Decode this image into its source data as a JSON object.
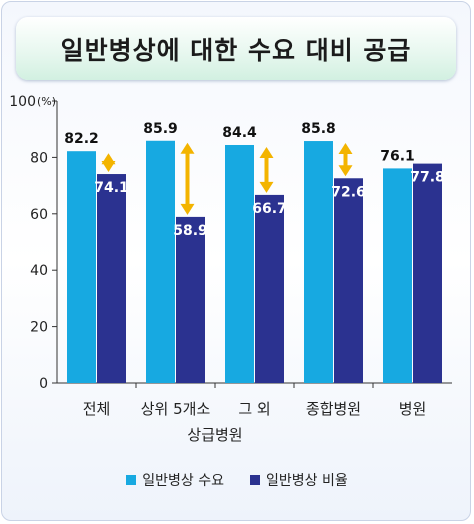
{
  "chart_data": {
    "type": "bar",
    "title": "일반병상에 대한 수요 대비 공급",
    "unit_label": "(%)",
    "xlabel": "상급병원",
    "ylabel": "",
    "ylim": [
      0,
      100
    ],
    "yticks": [
      0,
      20,
      40,
      60,
      80,
      100
    ],
    "categories": [
      "전체",
      "상위 5개소",
      "그 외",
      "종합병원",
      "병원"
    ],
    "series": [
      {
        "name": "일반병상 수요",
        "values": [
          82.2,
          85.9,
          84.4,
          85.8,
          76.1
        ],
        "color": "#17a9e1"
      },
      {
        "name": "일반병상 비율",
        "values": [
          74.1,
          58.9,
          66.7,
          72.6,
          77.8
        ],
        "color": "#2b3290"
      }
    ],
    "gap_arrows": [
      true,
      true,
      true,
      true,
      false
    ],
    "arrow_color": "#f3b400",
    "legend_position": "bottom",
    "grid": false
  }
}
